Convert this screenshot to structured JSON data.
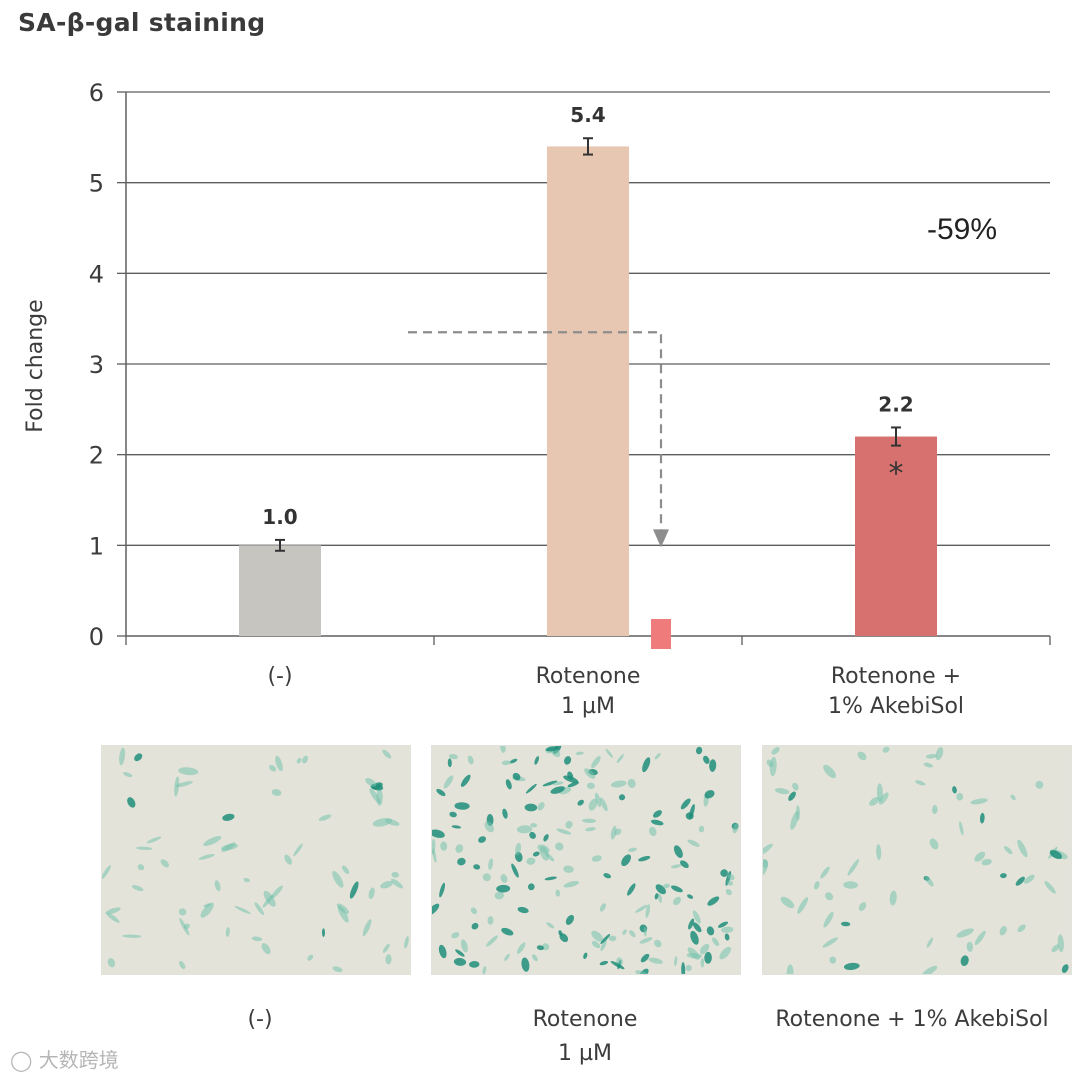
{
  "title": "SA-β-gal staining",
  "chart_data": {
    "type": "bar",
    "ylabel": "Fold change",
    "xlabel": "",
    "ylim": [
      0,
      6
    ],
    "yticks": [
      0,
      1,
      2,
      3,
      4,
      5,
      6
    ],
    "grid": true,
    "categories": [
      {
        "line1": "(-)",
        "line2": ""
      },
      {
        "line1": "Rotenone",
        "line2": "1 µM"
      },
      {
        "line1": "Rotenone +",
        "line2": "1% AkebiSol"
      }
    ],
    "values": [
      1.0,
      5.4,
      2.2
    ],
    "value_labels": [
      "1.0",
      "5.4",
      "2.2"
    ],
    "errors": [
      0.06,
      0.09,
      0.1
    ],
    "colors": [
      "#c6c5bf",
      "#e8c7b2",
      "#d6716f"
    ],
    "significance": [
      "",
      "",
      "*"
    ],
    "annotation": "-59%",
    "reduction_arrow": {
      "from_y": 3.35,
      "to_y": 1.0
    }
  },
  "images": [
    {
      "caption_line1": "(-)",
      "caption_line2": "",
      "density": "low"
    },
    {
      "caption_line1": "Rotenone",
      "caption_line2": "1 µM",
      "density": "high"
    },
    {
      "caption_line1": "Rotenone + 1% AkebiSol",
      "caption_line2": "",
      "density": "low"
    }
  ],
  "watermark": "大数跨境"
}
